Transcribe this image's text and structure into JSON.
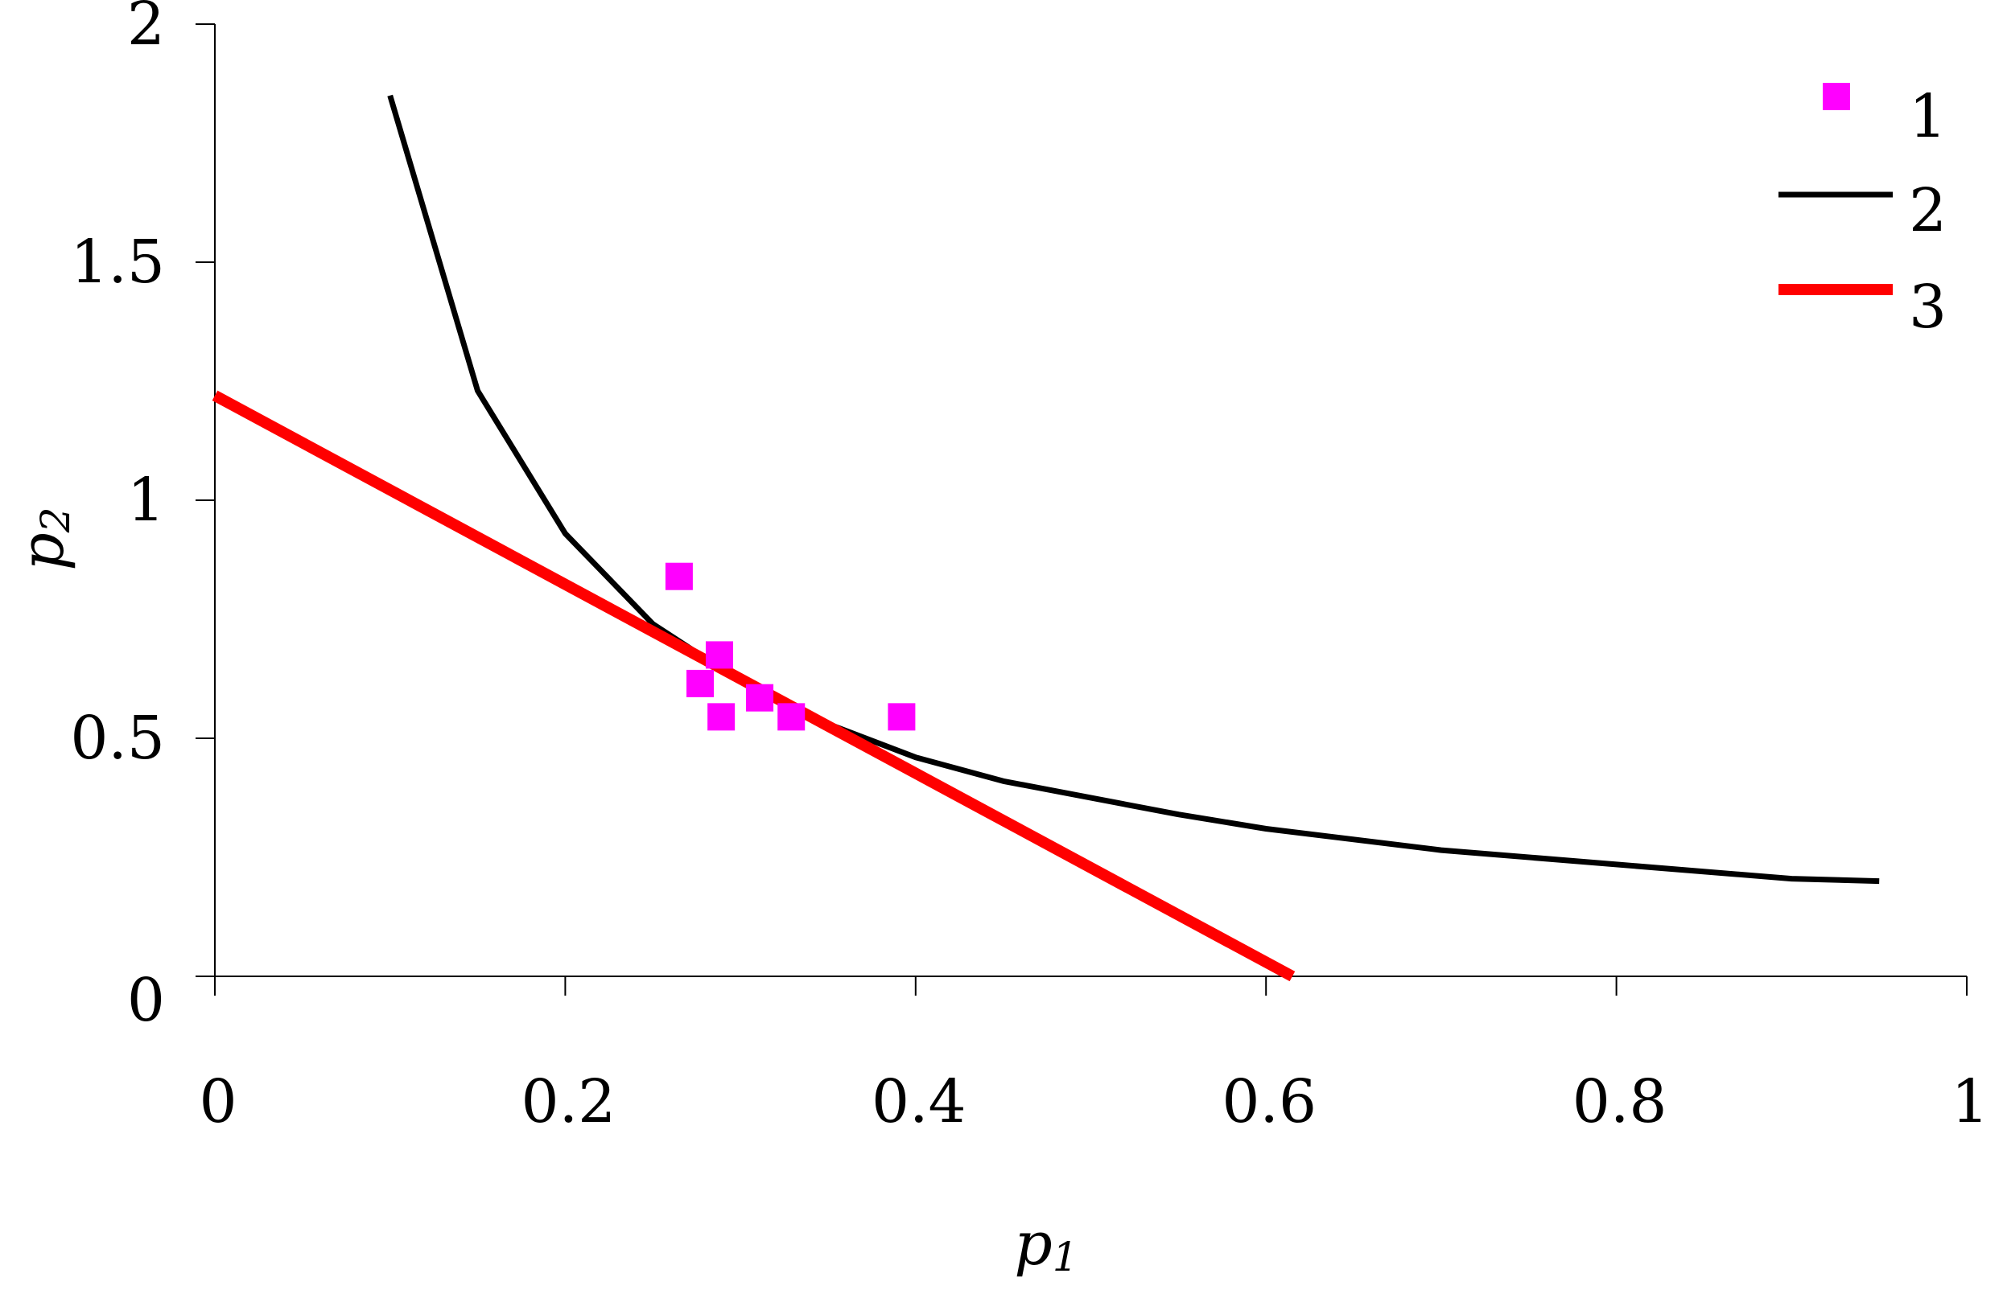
{
  "chart_data": {
    "type": "scatter",
    "title": "",
    "xlabel": {
      "main": "p",
      "sub": "1"
    },
    "ylabel": {
      "main": "p",
      "sub": "2"
    },
    "xlim": [
      0,
      1
    ],
    "ylim": [
      0,
      2
    ],
    "x_ticks": [
      0,
      0.2,
      0.4,
      0.6,
      0.8,
      1
    ],
    "x_tick_labels": [
      "0",
      "0.2",
      "0.4",
      "0.6",
      "0.8",
      "1"
    ],
    "y_ticks": [
      0,
      0.5,
      1,
      1.5,
      2
    ],
    "y_tick_labels": [
      "0",
      "0.5",
      "1",
      "1.5",
      "2"
    ],
    "grid": false,
    "legend_position": "top-right",
    "series": [
      {
        "name": "1",
        "type": "scatter",
        "marker": "square",
        "color": "#FF00FF",
        "points": [
          [
            0.265,
            0.84
          ],
          [
            0.277,
            0.615
          ],
          [
            0.288,
            0.675
          ],
          [
            0.289,
            0.545
          ],
          [
            0.311,
            0.585
          ],
          [
            0.329,
            0.545
          ],
          [
            0.392,
            0.545
          ]
        ]
      },
      {
        "name": "2",
        "type": "line",
        "color": "#000000",
        "points": [
          [
            0.1,
            1.85
          ],
          [
            0.15,
            1.23
          ],
          [
            0.2,
            0.93
          ],
          [
            0.25,
            0.74
          ],
          [
            0.3,
            0.62
          ],
          [
            0.35,
            0.53
          ],
          [
            0.4,
            0.46
          ],
          [
            0.45,
            0.41
          ],
          [
            0.55,
            0.34
          ],
          [
            0.6,
            0.31
          ],
          [
            0.7,
            0.265
          ],
          [
            0.8,
            0.235
          ],
          [
            0.9,
            0.205
          ],
          [
            0.95,
            0.2
          ]
        ]
      },
      {
        "name": "3",
        "type": "line",
        "color": "#FF0000",
        "points": [
          [
            0.0,
            1.22
          ],
          [
            0.615,
            0.0
          ]
        ]
      }
    ]
  }
}
